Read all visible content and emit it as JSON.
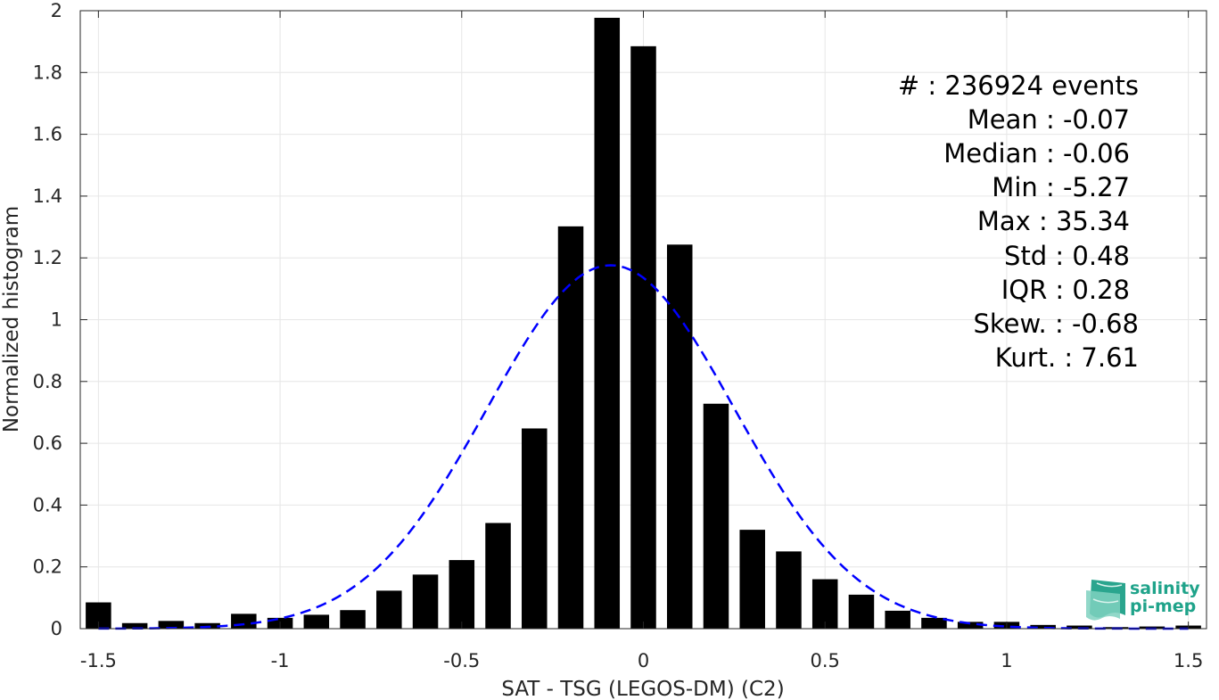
{
  "chart_data": {
    "type": "bar",
    "xlabel": "SAT - TSG (LEGOS-DM) (C2)",
    "ylabel": "Normalized histogram",
    "xlim": [
      -1.55,
      1.55
    ],
    "ylim": [
      0,
      2
    ],
    "grid": true,
    "x_ticks": [
      -1.5,
      -1,
      -0.5,
      0,
      0.5,
      1,
      1.5
    ],
    "x_tick_labels": [
      "-1.5",
      "-1",
      "-0.5",
      "0",
      "0.5",
      "1",
      "1.5"
    ],
    "y_ticks": [
      0,
      0.2,
      0.4,
      0.6,
      0.8,
      1,
      1.2,
      1.4,
      1.6,
      1.8,
      2
    ],
    "y_tick_labels": [
      "0",
      "0.2",
      "0.4",
      "0.6",
      "0.8",
      "1",
      "1.2",
      "1.4",
      "1.6",
      "1.8",
      "2"
    ],
    "bar_centers": [
      -1.5,
      -1.4,
      -1.3,
      -1.2,
      -1.1,
      -1.0,
      -0.9,
      -0.8,
      -0.7,
      -0.6,
      -0.5,
      -0.4,
      -0.3,
      -0.2,
      -0.1,
      0.0,
      0.1,
      0.2,
      0.3,
      0.4,
      0.5,
      0.6,
      0.7,
      0.8,
      0.9,
      1.0,
      1.1,
      1.2,
      1.3,
      1.4,
      1.5
    ],
    "bar_values": [
      0.085,
      0.018,
      0.025,
      0.018,
      0.048,
      0.035,
      0.045,
      0.06,
      0.123,
      0.175,
      0.222,
      0.342,
      0.648,
      1.302,
      1.977,
      1.885,
      1.243,
      0.728,
      0.32,
      0.25,
      0.16,
      0.11,
      0.058,
      0.035,
      0.022,
      0.022,
      0.012,
      0.01,
      0.005,
      0.007,
      0.01
    ],
    "bar_width": 0.07,
    "bar_color": "#000000",
    "gaussian_fit": {
      "mean": -0.09,
      "std": 0.34,
      "peak": 1.176,
      "color": "#0000ff",
      "style": "dashed"
    }
  },
  "stats": {
    "count_line": "#  : 236924 events",
    "mean_line": "Mean : -0.07",
    "median_line": "Median : -0.06",
    "min_line": "Min : -5.27",
    "max_line": "Max : 35.34",
    "std_line": "Std : 0.48",
    "iqr_line": "IQR : 0.28",
    "skew_line": "Skew. : -0.68",
    "kurt_line": "Kurt. : 7.61"
  },
  "logo": {
    "line1": "salinity",
    "line2": "pi-mep",
    "color": "#1fa38a"
  }
}
